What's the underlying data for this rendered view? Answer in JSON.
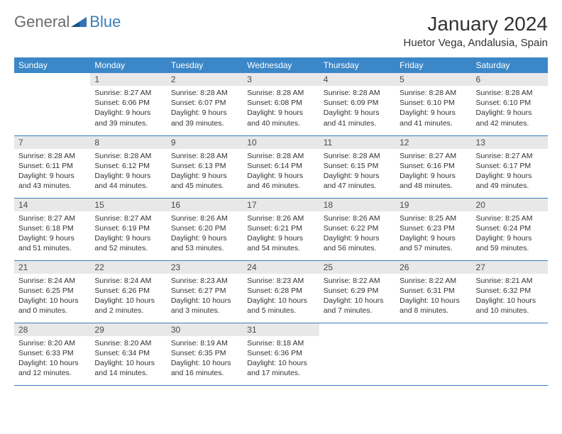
{
  "logo": {
    "general": "General",
    "blue": "Blue"
  },
  "title": "January 2024",
  "location": "Huetor Vega, Andalusia, Spain",
  "header_bg": "#3b87c8",
  "header_text_color": "#ffffff",
  "daynum_bg": "#e8e8e8",
  "rule_color": "#3b7dbb",
  "text_color": "#333333",
  "fontsize_title": 28,
  "fontsize_location": 15,
  "fontsize_header": 12,
  "fontsize_daynum": 12,
  "fontsize_body": 10.5,
  "weekdays": [
    "Sunday",
    "Monday",
    "Tuesday",
    "Wednesday",
    "Thursday",
    "Friday",
    "Saturday"
  ],
  "weeks": [
    [
      null,
      {
        "n": 1,
        "sunrise": "8:27 AM",
        "sunset": "6:06 PM",
        "daylight": "9 hours and 39 minutes."
      },
      {
        "n": 2,
        "sunrise": "8:28 AM",
        "sunset": "6:07 PM",
        "daylight": "9 hours and 39 minutes."
      },
      {
        "n": 3,
        "sunrise": "8:28 AM",
        "sunset": "6:08 PM",
        "daylight": "9 hours and 40 minutes."
      },
      {
        "n": 4,
        "sunrise": "8:28 AM",
        "sunset": "6:09 PM",
        "daylight": "9 hours and 41 minutes."
      },
      {
        "n": 5,
        "sunrise": "8:28 AM",
        "sunset": "6:10 PM",
        "daylight": "9 hours and 41 minutes."
      },
      {
        "n": 6,
        "sunrise": "8:28 AM",
        "sunset": "6:10 PM",
        "daylight": "9 hours and 42 minutes."
      }
    ],
    [
      {
        "n": 7,
        "sunrise": "8:28 AM",
        "sunset": "6:11 PM",
        "daylight": "9 hours and 43 minutes."
      },
      {
        "n": 8,
        "sunrise": "8:28 AM",
        "sunset": "6:12 PM",
        "daylight": "9 hours and 44 minutes."
      },
      {
        "n": 9,
        "sunrise": "8:28 AM",
        "sunset": "6:13 PM",
        "daylight": "9 hours and 45 minutes."
      },
      {
        "n": 10,
        "sunrise": "8:28 AM",
        "sunset": "6:14 PM",
        "daylight": "9 hours and 46 minutes."
      },
      {
        "n": 11,
        "sunrise": "8:28 AM",
        "sunset": "6:15 PM",
        "daylight": "9 hours and 47 minutes."
      },
      {
        "n": 12,
        "sunrise": "8:27 AM",
        "sunset": "6:16 PM",
        "daylight": "9 hours and 48 minutes."
      },
      {
        "n": 13,
        "sunrise": "8:27 AM",
        "sunset": "6:17 PM",
        "daylight": "9 hours and 49 minutes."
      }
    ],
    [
      {
        "n": 14,
        "sunrise": "8:27 AM",
        "sunset": "6:18 PM",
        "daylight": "9 hours and 51 minutes."
      },
      {
        "n": 15,
        "sunrise": "8:27 AM",
        "sunset": "6:19 PM",
        "daylight": "9 hours and 52 minutes."
      },
      {
        "n": 16,
        "sunrise": "8:26 AM",
        "sunset": "6:20 PM",
        "daylight": "9 hours and 53 minutes."
      },
      {
        "n": 17,
        "sunrise": "8:26 AM",
        "sunset": "6:21 PM",
        "daylight": "9 hours and 54 minutes."
      },
      {
        "n": 18,
        "sunrise": "8:26 AM",
        "sunset": "6:22 PM",
        "daylight": "9 hours and 56 minutes."
      },
      {
        "n": 19,
        "sunrise": "8:25 AM",
        "sunset": "6:23 PM",
        "daylight": "9 hours and 57 minutes."
      },
      {
        "n": 20,
        "sunrise": "8:25 AM",
        "sunset": "6:24 PM",
        "daylight": "9 hours and 59 minutes."
      }
    ],
    [
      {
        "n": 21,
        "sunrise": "8:24 AM",
        "sunset": "6:25 PM",
        "daylight": "10 hours and 0 minutes."
      },
      {
        "n": 22,
        "sunrise": "8:24 AM",
        "sunset": "6:26 PM",
        "daylight": "10 hours and 2 minutes."
      },
      {
        "n": 23,
        "sunrise": "8:23 AM",
        "sunset": "6:27 PM",
        "daylight": "10 hours and 3 minutes."
      },
      {
        "n": 24,
        "sunrise": "8:23 AM",
        "sunset": "6:28 PM",
        "daylight": "10 hours and 5 minutes."
      },
      {
        "n": 25,
        "sunrise": "8:22 AM",
        "sunset": "6:29 PM",
        "daylight": "10 hours and 7 minutes."
      },
      {
        "n": 26,
        "sunrise": "8:22 AM",
        "sunset": "6:31 PM",
        "daylight": "10 hours and 8 minutes."
      },
      {
        "n": 27,
        "sunrise": "8:21 AM",
        "sunset": "6:32 PM",
        "daylight": "10 hours and 10 minutes."
      }
    ],
    [
      {
        "n": 28,
        "sunrise": "8:20 AM",
        "sunset": "6:33 PM",
        "daylight": "10 hours and 12 minutes."
      },
      {
        "n": 29,
        "sunrise": "8:20 AM",
        "sunset": "6:34 PM",
        "daylight": "10 hours and 14 minutes."
      },
      {
        "n": 30,
        "sunrise": "8:19 AM",
        "sunset": "6:35 PM",
        "daylight": "10 hours and 16 minutes."
      },
      {
        "n": 31,
        "sunrise": "8:18 AM",
        "sunset": "6:36 PM",
        "daylight": "10 hours and 17 minutes."
      },
      null,
      null,
      null
    ]
  ]
}
